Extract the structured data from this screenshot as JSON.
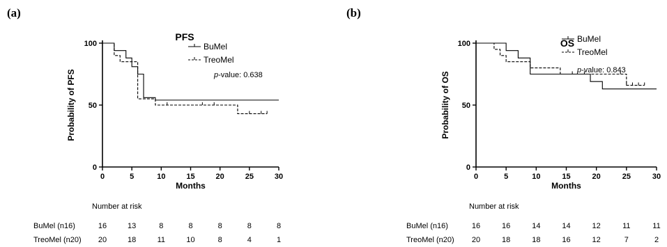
{
  "chart_data": [
    {
      "type": "line",
      "panel_label": "(a)",
      "title": "PFS",
      "xlabel": "Months",
      "ylabel": "Probability of PFS",
      "xlim": [
        0,
        30
      ],
      "ylim": [
        0,
        100
      ],
      "xticks": [
        0,
        5,
        10,
        15,
        20,
        25,
        30
      ],
      "yticks": [
        0,
        50,
        100
      ],
      "legend_position": "top-right",
      "p_label": "p",
      "p_suffix": "-value: 0.638",
      "series": [
        {
          "name": "BuMel",
          "line_style": "solid",
          "steps": [
            [
              0,
              100
            ],
            [
              2,
              94
            ],
            [
              4,
              88
            ],
            [
              5,
              81
            ],
            [
              6,
              75
            ],
            [
              7,
              56
            ],
            [
              9,
              54
            ],
            [
              30,
              54
            ]
          ],
          "censored": []
        },
        {
          "name": "TreoMel",
          "line_style": "dashed",
          "steps": [
            [
              0,
              100
            ],
            [
              2,
              90
            ],
            [
              3,
              85
            ],
            [
              6,
              55
            ],
            [
              9,
              50
            ],
            [
              23,
              43
            ],
            [
              28,
              43
            ]
          ],
          "censored": [
            11,
            17,
            19,
            25,
            27,
            28
          ]
        }
      ],
      "risk_table": {
        "title": "Number at risk",
        "rows": [
          {
            "label": "BuMel (n16)",
            "values": [
              "16",
              "13",
              "8",
              "8",
              "8",
              "8",
              "8"
            ]
          },
          {
            "label": "TreoMel (n20)",
            "values": [
              "20",
              "18",
              "11",
              "10",
              "8",
              "4",
              "1"
            ]
          }
        ]
      }
    },
    {
      "type": "line",
      "panel_label": "(b)",
      "title": "OS",
      "xlabel": "Months",
      "ylabel": "Probability of OS",
      "xlim": [
        0,
        30
      ],
      "ylim": [
        0,
        100
      ],
      "xticks": [
        0,
        5,
        10,
        15,
        20,
        25,
        30
      ],
      "yticks": [
        0,
        50,
        100
      ],
      "legend_position": "top-right",
      "p_label": "p",
      "p_suffix": "-value: 0.843",
      "series": [
        {
          "name": "BuMel",
          "line_style": "solid",
          "steps": [
            [
              0,
              100
            ],
            [
              5,
              94
            ],
            [
              7,
              88
            ],
            [
              9,
              75
            ],
            [
              19,
              69
            ],
            [
              21,
              63
            ],
            [
              30,
              63
            ]
          ],
          "censored": []
        },
        {
          "name": "TreoMel",
          "line_style": "dashed",
          "steps": [
            [
              0,
              100
            ],
            [
              3,
              95
            ],
            [
              4,
              90
            ],
            [
              5,
              85
            ],
            [
              9,
              80
            ],
            [
              14,
              75
            ],
            [
              25,
              66
            ],
            [
              28,
              66
            ]
          ],
          "censored": [
            16,
            18,
            24,
            25,
            26,
            27,
            28
          ]
        }
      ],
      "risk_table": {
        "title": "Number at risk",
        "rows": [
          {
            "label": "BuMel (n16)",
            "values": [
              "16",
              "16",
              "14",
              "14",
              "12",
              "11",
              "11"
            ]
          },
          {
            "label": "TreoMel (n20)",
            "values": [
              "20",
              "18",
              "18",
              "16",
              "12",
              "7",
              "2"
            ]
          }
        ]
      }
    }
  ]
}
